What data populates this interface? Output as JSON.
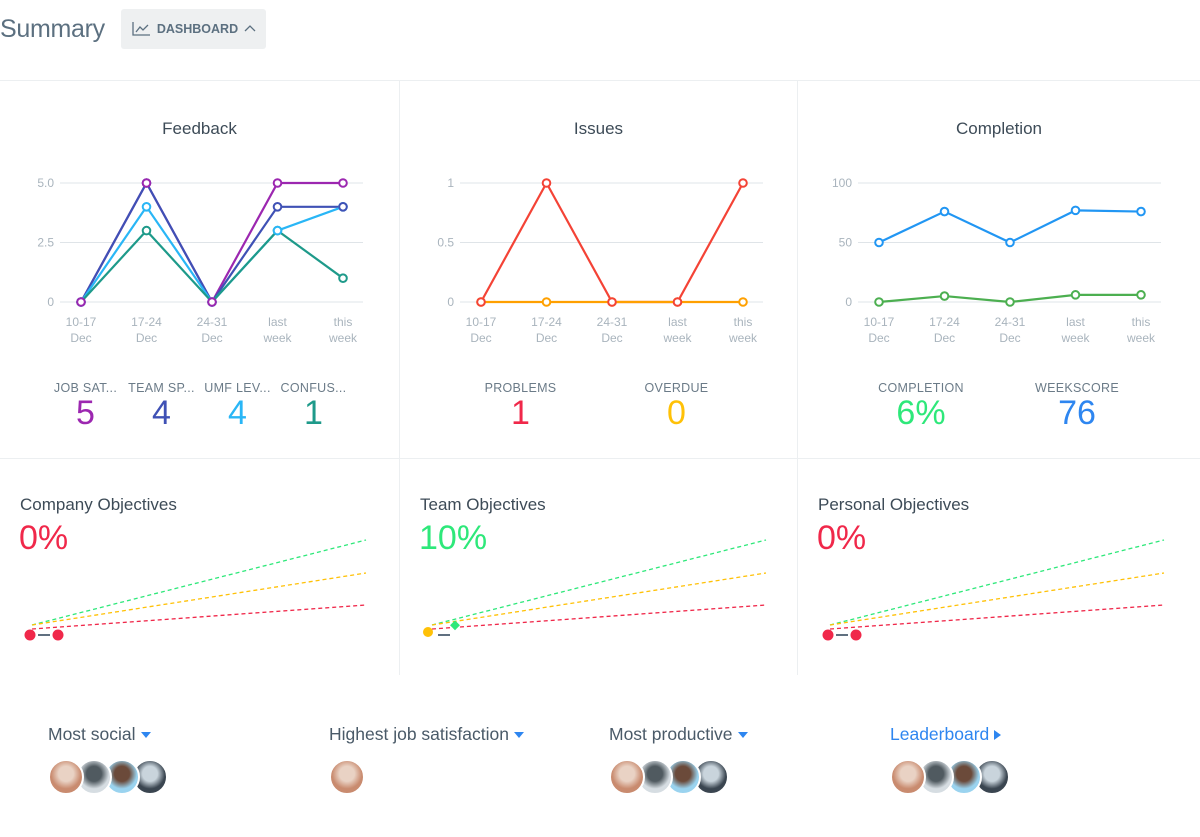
{
  "header": {
    "title": "Summary",
    "dashboard_label": "DASHBOARD"
  },
  "colors": {
    "job": "#9c27b0",
    "team": "#3f51b5",
    "umf": "#29b6f6",
    "confusion": "#1e9a8a",
    "problems": "#f44336",
    "overdue": "#ffa000",
    "completion_line": "#2196f3",
    "completion_green": "#4caf50",
    "red": "#f0284a",
    "green": "#2ee87a",
    "blue": "#2e86f0",
    "yellow": "#ffc107"
  },
  "chart_data": [
    {
      "type": "line",
      "title": "Feedback",
      "categories": [
        "10-17 Dec",
        "17-24 Dec",
        "24-31 Dec",
        "last week",
        "this week"
      ],
      "yticks": [
        "0",
        "2.5",
        "5.0"
      ],
      "ylim": [
        0,
        5
      ],
      "grid": true,
      "series": [
        {
          "name": "JOB SAT...",
          "color": "#9c27b0",
          "values": [
            0,
            5,
            0,
            5,
            5
          ]
        },
        {
          "name": "TEAM SP...",
          "color": "#3f51b5",
          "values": [
            0,
            5,
            0,
            4,
            4
          ]
        },
        {
          "name": "UMF LEV...",
          "color": "#29b6f6",
          "values": [
            0,
            4,
            0,
            3,
            4
          ]
        },
        {
          "name": "CONFUS...",
          "color": "#1e9a8a",
          "values": [
            0,
            3,
            0,
            3,
            1
          ]
        }
      ]
    },
    {
      "type": "line",
      "title": "Issues",
      "categories": [
        "10-17 Dec",
        "17-24 Dec",
        "24-31 Dec",
        "last week",
        "this week"
      ],
      "yticks": [
        "0",
        "0.5",
        "1"
      ],
      "ylim": [
        0,
        1
      ],
      "grid": true,
      "series": [
        {
          "name": "PROBLEMS",
          "color": "#f44336",
          "values": [
            0,
            1,
            0,
            0,
            1
          ]
        },
        {
          "name": "OVERDUE",
          "color": "#ffa000",
          "values": [
            0,
            0,
            0,
            0,
            0
          ]
        }
      ]
    },
    {
      "type": "line",
      "title": "Completion",
      "categories": [
        "10-17 Dec",
        "17-24 Dec",
        "24-31 Dec",
        "last week",
        "this week"
      ],
      "yticks": [
        "0",
        "50",
        "100"
      ],
      "ylim": [
        0,
        100
      ],
      "grid": true,
      "series": [
        {
          "name": "WEEKSCORE",
          "color": "#2196f3",
          "values": [
            50,
            76,
            50,
            77,
            76
          ]
        },
        {
          "name": "COMPLETION",
          "color": "#4caf50",
          "values": [
            0,
            5,
            0,
            6,
            6
          ]
        }
      ]
    }
  ],
  "stats": {
    "feedback": [
      {
        "label": "JOB SAT...",
        "value": "5",
        "color": "#9c27b0"
      },
      {
        "label": "TEAM SP...",
        "value": "4",
        "color": "#3f51b5"
      },
      {
        "label": "UMF LEV...",
        "value": "4",
        "color": "#29b6f6"
      },
      {
        "label": "CONFUS...",
        "value": "1",
        "color": "#1e9a8a"
      }
    ],
    "issues": [
      {
        "label": "PROBLEMS",
        "value": "1",
        "color": "#f0284a"
      },
      {
        "label": "OVERDUE",
        "value": "0",
        "color": "#ffc107"
      }
    ],
    "completion": [
      {
        "label": "COMPLETION",
        "value": "6%",
        "color": "#2ee87a"
      },
      {
        "label": "WEEKSCORE",
        "value": "76",
        "color": "#2e86f0"
      }
    ]
  },
  "objectives": [
    {
      "title": "Company Objectives",
      "value": "0%",
      "color": "#f0284a"
    },
    {
      "title": "Team Objectives",
      "value": "10%",
      "color": "#2ee87a"
    },
    {
      "title": "Personal Objectives",
      "value": "0%",
      "color": "#f0284a"
    }
  ],
  "groups": [
    {
      "label": "Most social",
      "avatars": 4
    },
    {
      "label": "Highest job satisfaction",
      "avatars": 1
    },
    {
      "label": "Most productive",
      "avatars": 4
    },
    {
      "label": "Leaderboard",
      "avatars": 4
    }
  ]
}
